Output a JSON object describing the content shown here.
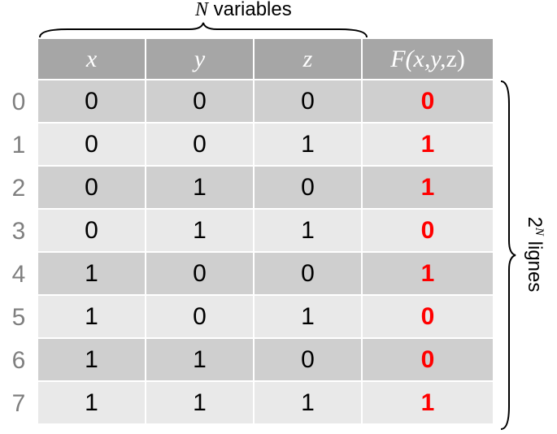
{
  "top_label": {
    "symbol": "N",
    "text": " variables"
  },
  "side_label": {
    "base": "2",
    "exponent": "N",
    "text": " lignes"
  },
  "header": {
    "x": "x",
    "y": "y",
    "z": "z",
    "f_name": "F",
    "f_args": "(x,y,",
    "f_last": "z",
    "f_close": ")"
  },
  "row_indices": [
    "0",
    "1",
    "2",
    "3",
    "4",
    "5",
    "6",
    "7"
  ],
  "rows": [
    {
      "x": "0",
      "y": "0",
      "z": "0",
      "f": "0"
    },
    {
      "x": "0",
      "y": "0",
      "z": "1",
      "f": "1"
    },
    {
      "x": "0",
      "y": "1",
      "z": "0",
      "f": "1"
    },
    {
      "x": "0",
      "y": "1",
      "z": "1",
      "f": "0"
    },
    {
      "x": "1",
      "y": "0",
      "z": "0",
      "f": "1"
    },
    {
      "x": "1",
      "y": "0",
      "z": "1",
      "f": "0"
    },
    {
      "x": "1",
      "y": "1",
      "z": "0",
      "f": "0"
    },
    {
      "x": "1",
      "y": "1",
      "z": "1",
      "f": "1"
    }
  ],
  "colors": {
    "header_bg": "#a6a6a6",
    "row_dark": "#cfcfcf",
    "row_light": "#e9e9e9",
    "output_text": "#ff0000",
    "index_text": "#7f7f7f"
  }
}
